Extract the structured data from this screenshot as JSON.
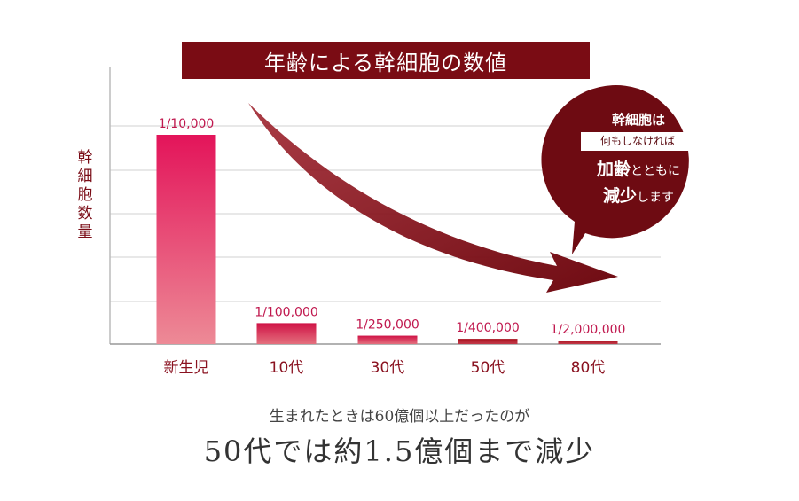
{
  "chart_data": {
    "type": "bar",
    "title": "年齢による幹細胞の数値",
    "ylabel": "幹細胞数量",
    "xlabel": "",
    "categories": [
      "新生児",
      "10代",
      "30代",
      "50代",
      "80代"
    ],
    "value_labels": [
      "1/10,000",
      "1/100,000",
      "1/250,000",
      "1/400,000",
      "1/2,000,000"
    ],
    "values": [
      0.0001,
      1e-05,
      4e-06,
      2.5e-06,
      5e-07
    ],
    "ylim": [
      0,
      0.000125
    ],
    "grid": true,
    "legend": "none"
  },
  "callout": {
    "line1": "幹細胞は",
    "line2": "何もしなければ",
    "line3_main": "加齢",
    "line3_small": "とともに",
    "line4_main": "減少",
    "line4_small": "します"
  },
  "captions": {
    "line1": "生まれたときは60億個以上だったのが",
    "line2": "50代では約1.5億個まで減少"
  },
  "colors": {
    "bar_top": "#e3145a",
    "bar_bottom": "#ec8593",
    "bar_dark": "#a8121f",
    "label_text": "#c0184e",
    "category_text": "#8a1220",
    "banner": "#7a0c14",
    "arrow": "#7a0c14",
    "callout": "#6e0b12",
    "grid": "#cccccc"
  }
}
